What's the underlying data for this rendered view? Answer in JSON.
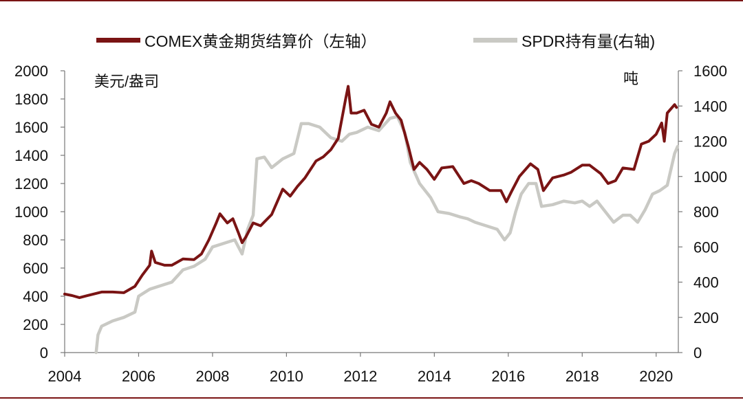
{
  "chart_data": {
    "type": "line",
    "title": "",
    "x_ticks": [
      "2004",
      "2006",
      "2008",
      "2010",
      "2012",
      "2014",
      "2016",
      "2018",
      "2020"
    ],
    "xlim": [
      2004,
      2020.6
    ],
    "left_axis": {
      "unit_label": "美元/盎司",
      "ylim": [
        0,
        2000
      ],
      "ticks": [
        "0",
        "200",
        "400",
        "600",
        "800",
        "1000",
        "1200",
        "1400",
        "1600",
        "1800",
        "2000"
      ]
    },
    "right_axis": {
      "unit_label": "吨",
      "ylim": [
        0,
        1600
      ],
      "ticks": [
        "0",
        "200",
        "400",
        "600",
        "800",
        "1000",
        "1200",
        "1400",
        "1600"
      ]
    },
    "legend_position": "top",
    "grid": false,
    "series": [
      {
        "name": "COMEX黄金期货结算价（左轴）",
        "axis": "left",
        "color": "#7a1414",
        "points": [
          [
            2004.0,
            415
          ],
          [
            2004.2,
            405
          ],
          [
            2004.4,
            390
          ],
          [
            2004.7,
            410
          ],
          [
            2005.0,
            430
          ],
          [
            2005.3,
            430
          ],
          [
            2005.6,
            425
          ],
          [
            2005.9,
            470
          ],
          [
            2006.1,
            550
          ],
          [
            2006.3,
            620
          ],
          [
            2006.35,
            720
          ],
          [
            2006.45,
            640
          ],
          [
            2006.7,
            620
          ],
          [
            2006.9,
            620
          ],
          [
            2007.2,
            665
          ],
          [
            2007.5,
            660
          ],
          [
            2007.7,
            700
          ],
          [
            2007.9,
            800
          ],
          [
            2008.1,
            920
          ],
          [
            2008.2,
            985
          ],
          [
            2008.4,
            920
          ],
          [
            2008.55,
            950
          ],
          [
            2008.7,
            850
          ],
          [
            2008.8,
            780
          ],
          [
            2008.9,
            820
          ],
          [
            2009.1,
            920
          ],
          [
            2009.3,
            900
          ],
          [
            2009.6,
            980
          ],
          [
            2009.9,
            1160
          ],
          [
            2010.1,
            1110
          ],
          [
            2010.3,
            1180
          ],
          [
            2010.5,
            1240
          ],
          [
            2010.8,
            1360
          ],
          [
            2011.0,
            1390
          ],
          [
            2011.2,
            1440
          ],
          [
            2011.4,
            1520
          ],
          [
            2011.6,
            1800
          ],
          [
            2011.67,
            1890
          ],
          [
            2011.75,
            1700
          ],
          [
            2011.9,
            1700
          ],
          [
            2012.1,
            1720
          ],
          [
            2012.3,
            1620
          ],
          [
            2012.5,
            1600
          ],
          [
            2012.7,
            1700
          ],
          [
            2012.8,
            1780
          ],
          [
            2012.95,
            1700
          ],
          [
            2013.1,
            1650
          ],
          [
            2013.3,
            1460
          ],
          [
            2013.45,
            1300
          ],
          [
            2013.6,
            1350
          ],
          [
            2013.8,
            1300
          ],
          [
            2014.0,
            1230
          ],
          [
            2014.2,
            1310
          ],
          [
            2014.5,
            1320
          ],
          [
            2014.8,
            1200
          ],
          [
            2015.0,
            1220
          ],
          [
            2015.2,
            1200
          ],
          [
            2015.5,
            1150
          ],
          [
            2015.8,
            1150
          ],
          [
            2015.95,
            1070
          ],
          [
            2016.1,
            1150
          ],
          [
            2016.3,
            1250
          ],
          [
            2016.6,
            1340
          ],
          [
            2016.8,
            1300
          ],
          [
            2016.95,
            1150
          ],
          [
            2017.2,
            1240
          ],
          [
            2017.5,
            1260
          ],
          [
            2017.7,
            1280
          ],
          [
            2018.0,
            1330
          ],
          [
            2018.2,
            1330
          ],
          [
            2018.5,
            1270
          ],
          [
            2018.7,
            1200
          ],
          [
            2018.9,
            1220
          ],
          [
            2019.1,
            1310
          ],
          [
            2019.4,
            1300
          ],
          [
            2019.6,
            1480
          ],
          [
            2019.8,
            1500
          ],
          [
            2020.0,
            1550
          ],
          [
            2020.15,
            1630
          ],
          [
            2020.22,
            1500
          ],
          [
            2020.3,
            1700
          ],
          [
            2020.5,
            1760
          ],
          [
            2020.55,
            1740
          ]
        ]
      },
      {
        "name": "SPDR持有量(右轴)",
        "axis": "right",
        "color": "#c9c9c4",
        "points": [
          [
            2004.85,
            0
          ],
          [
            2004.9,
            100
          ],
          [
            2005.0,
            150
          ],
          [
            2005.3,
            180
          ],
          [
            2005.6,
            200
          ],
          [
            2005.9,
            230
          ],
          [
            2006.0,
            320
          ],
          [
            2006.3,
            360
          ],
          [
            2006.6,
            380
          ],
          [
            2006.9,
            400
          ],
          [
            2007.2,
            470
          ],
          [
            2007.5,
            490
          ],
          [
            2007.8,
            530
          ],
          [
            2008.0,
            600
          ],
          [
            2008.3,
            620
          ],
          [
            2008.6,
            640
          ],
          [
            2008.8,
            560
          ],
          [
            2008.95,
            700
          ],
          [
            2009.1,
            780
          ],
          [
            2009.2,
            1100
          ],
          [
            2009.4,
            1110
          ],
          [
            2009.6,
            1050
          ],
          [
            2009.9,
            1100
          ],
          [
            2010.2,
            1130
          ],
          [
            2010.4,
            1300
          ],
          [
            2010.6,
            1300
          ],
          [
            2010.9,
            1280
          ],
          [
            2011.2,
            1220
          ],
          [
            2011.5,
            1200
          ],
          [
            2011.7,
            1240
          ],
          [
            2011.9,
            1250
          ],
          [
            2012.2,
            1280
          ],
          [
            2012.5,
            1260
          ],
          [
            2012.8,
            1330
          ],
          [
            2013.0,
            1340
          ],
          [
            2013.2,
            1250
          ],
          [
            2013.35,
            1080
          ],
          [
            2013.6,
            960
          ],
          [
            2013.9,
            880
          ],
          [
            2014.1,
            800
          ],
          [
            2014.4,
            790
          ],
          [
            2014.7,
            770
          ],
          [
            2014.9,
            760
          ],
          [
            2015.1,
            740
          ],
          [
            2015.4,
            720
          ],
          [
            2015.7,
            700
          ],
          [
            2015.9,
            640
          ],
          [
            2016.05,
            680
          ],
          [
            2016.2,
            800
          ],
          [
            2016.35,
            900
          ],
          [
            2016.55,
            960
          ],
          [
            2016.75,
            960
          ],
          [
            2016.9,
            830
          ],
          [
            2017.2,
            840
          ],
          [
            2017.5,
            860
          ],
          [
            2017.8,
            850
          ],
          [
            2018.0,
            860
          ],
          [
            2018.2,
            830
          ],
          [
            2018.4,
            860
          ],
          [
            2018.7,
            780
          ],
          [
            2018.85,
            740
          ],
          [
            2019.1,
            780
          ],
          [
            2019.3,
            780
          ],
          [
            2019.5,
            740
          ],
          [
            2019.7,
            810
          ],
          [
            2019.9,
            900
          ],
          [
            2020.1,
            920
          ],
          [
            2020.3,
            950
          ],
          [
            2020.5,
            1130
          ],
          [
            2020.58,
            1170
          ]
        ]
      }
    ]
  }
}
